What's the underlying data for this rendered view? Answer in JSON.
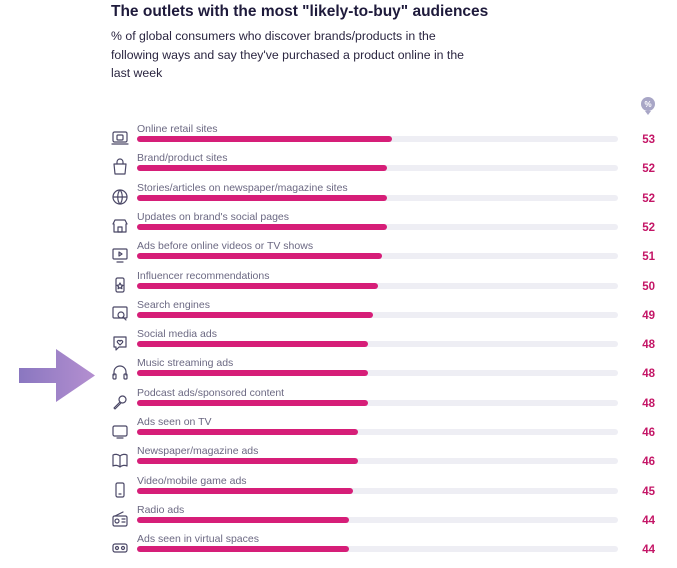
{
  "header": {
    "title": "The outlets with the most \"likely-to-buy\" audiences",
    "subtitle": "% of global consumers who discover brands/products in the following ways and say they've purchased a product online in the last week",
    "unit_badge": "%"
  },
  "colors": {
    "bar": "#d61e78",
    "track": "#eeeef4",
    "value": "#c41566",
    "arrow": "#9b7fc4"
  },
  "chart_data": {
    "type": "bar",
    "orientation": "horizontal",
    "title": "The outlets with the most \"likely-to-buy\" audiences",
    "subtitle": "% of global consumers who discover brands/products in the following ways and say they've purchased a product online in the last week",
    "unit": "%",
    "xlim": [
      0,
      100
    ],
    "grid": false,
    "categories": [
      "Online retail sites",
      "Brand/product sites",
      "Stories/articles on newspaper/magazine sites",
      "Updates on brand's social pages",
      "Ads before online videos or TV shows",
      "Influencer recommendations",
      "Search engines",
      "Social media ads",
      "Music streaming ads",
      "Podcast ads/sponsored content",
      "Ads seen on TV",
      "Newspaper/magazine ads",
      "Video/mobile game ads",
      "Radio ads",
      "Ads seen in virtual spaces"
    ],
    "values": [
      53,
      52,
      52,
      52,
      51,
      50,
      49,
      48,
      48,
      48,
      46,
      46,
      45,
      44,
      44
    ],
    "icons": [
      "laptop-bag-icon",
      "shopping-bag-icon",
      "globe-icon",
      "storefront-icon",
      "monitor-play-icon",
      "phone-star-icon",
      "search-screen-icon",
      "heart-chat-icon",
      "headphones-icon",
      "microphone-icon",
      "tv-icon",
      "open-book-icon",
      "mobile-phone-icon",
      "radio-icon",
      "vr-headset-icon"
    ],
    "highlight": "Music streaming ads"
  }
}
